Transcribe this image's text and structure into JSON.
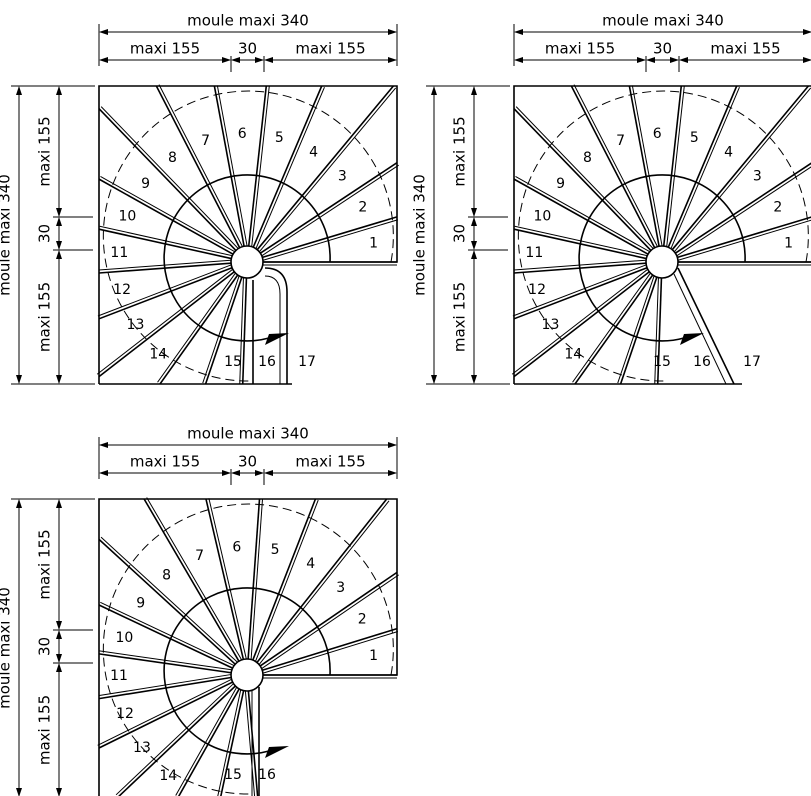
{
  "labels": {
    "total": "moule maxi 340",
    "side": "maxi 155",
    "middle": "30"
  },
  "diagrams": [
    {
      "id": "stair-17-straight-exit",
      "steps": [
        "1",
        "2",
        "3",
        "4",
        "5",
        "6",
        "7",
        "8",
        "9",
        "10",
        "11",
        "12",
        "13",
        "14",
        "15",
        "16",
        "17"
      ]
    },
    {
      "id": "stair-17-flared-exit",
      "steps": [
        "1",
        "2",
        "3",
        "4",
        "5",
        "6",
        "7",
        "8",
        "9",
        "10",
        "11",
        "12",
        "13",
        "14",
        "15",
        "16",
        "17"
      ]
    },
    {
      "id": "stair-16",
      "steps": [
        "1",
        "2",
        "3",
        "4",
        "5",
        "6",
        "7",
        "8",
        "9",
        "10",
        "11",
        "12",
        "13",
        "14",
        "15",
        "16"
      ]
    }
  ]
}
